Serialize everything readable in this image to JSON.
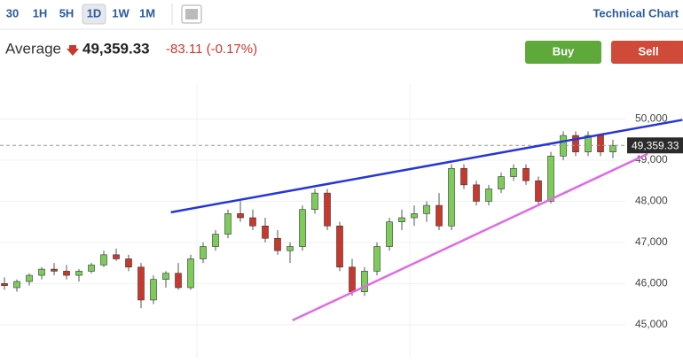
{
  "toolbar": {
    "ranges": [
      "30",
      "1H",
      "5H",
      "1D",
      "1W",
      "1M"
    ],
    "selected": 3,
    "link": "Technical Chart"
  },
  "header": {
    "name": "Average",
    "price": "49,359.33",
    "change": "-83.11 (-0.17%)",
    "buy": "Buy",
    "sell": "Sell"
  },
  "chart_data": {
    "type": "candlestick",
    "open": [
      46000,
      45900,
      46050,
      46200,
      46350,
      46300,
      46200,
      46300,
      46450,
      46700,
      46600,
      46400,
      45600,
      46100,
      46250,
      45900,
      46600,
      46900,
      47200,
      47700,
      47600,
      47400,
      47100,
      46800,
      46900,
      47800,
      48200,
      47400,
      46400,
      45800,
      46300,
      46900,
      47500,
      47600,
      47700,
      47900,
      47400,
      48800,
      48400,
      48000,
      48300,
      48600,
      48800,
      48500,
      48000,
      49100,
      49600,
      49200,
      49600,
      49200
    ],
    "high": [
      46150,
      46100,
      46250,
      46400,
      46500,
      46450,
      46350,
      46500,
      46800,
      46850,
      46700,
      46500,
      46200,
      46300,
      46500,
      46700,
      47000,
      47300,
      47800,
      48000,
      47800,
      47600,
      47300,
      47000,
      47900,
      48300,
      48300,
      47500,
      46600,
      46400,
      47000,
      47600,
      47800,
      47900,
      48000,
      48200,
      48900,
      48900,
      48500,
      48400,
      48700,
      48900,
      48900,
      48600,
      49200,
      49700,
      49700,
      49700,
      49650,
      49500
    ],
    "low": [
      45850,
      45800,
      45950,
      46100,
      46200,
      46100,
      46050,
      46250,
      46400,
      46550,
      46300,
      45400,
      45500,
      45900,
      45850,
      45850,
      46500,
      46800,
      47100,
      47500,
      47300,
      47000,
      46700,
      46500,
      46800,
      47700,
      47300,
      46300,
      45700,
      45700,
      46200,
      46800,
      47300,
      47400,
      47500,
      47300,
      47300,
      48300,
      47900,
      47900,
      48200,
      48500,
      48400,
      47900,
      47950,
      49000,
      49100,
      49100,
      49100,
      49050
    ],
    "close": [
      45950,
      46050,
      46200,
      46350,
      46300,
      46200,
      46300,
      46450,
      46700,
      46600,
      46400,
      45600,
      46100,
      46250,
      45900,
      46600,
      46900,
      47200,
      47700,
      47600,
      47400,
      47100,
      46800,
      46900,
      47800,
      48200,
      47400,
      46400,
      45800,
      46300,
      46900,
      47500,
      47600,
      47700,
      47900,
      47400,
      48800,
      48400,
      48000,
      48300,
      48600,
      48800,
      48500,
      48000,
      49100,
      49600,
      49200,
      49600,
      49200,
      49359.33
    ],
    "up_color": "#7dcc5a",
    "down_color": "#c9382c",
    "trendlines": [
      {
        "color": "#2536d9",
        "x": [
          13.4,
          54.6
        ],
        "y": [
          47733,
          49980
        ]
      },
      {
        "color": "#e06ae6",
        "x": [
          23.2,
          51.8
        ],
        "y": [
          45106,
          49153
        ]
      }
    ],
    "ylim": [
      44200,
      50850
    ],
    "yticks": [
      {
        "value": 45000,
        "label": "45,000"
      },
      {
        "value": 46000,
        "label": "46,000"
      },
      {
        "value": 47000,
        "label": "47,000"
      },
      {
        "value": 48000,
        "label": "48,000"
      },
      {
        "value": 49000,
        "label": "49,000"
      },
      {
        "value": 50000,
        "label": "50,000"
      }
    ],
    "grid": true
  }
}
